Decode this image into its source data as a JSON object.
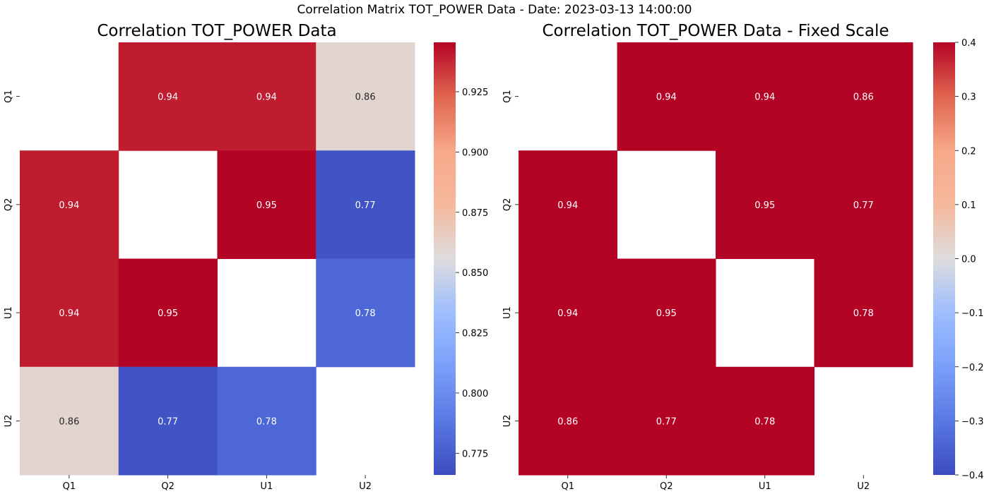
{
  "figure": {
    "suptitle": "Correlation Matrix TOT_POWER Data - Date: 2023-03-13 14:00:00"
  },
  "chart_data": [
    {
      "type": "heatmap",
      "title": "Correlation TOT_POWER Data",
      "xlabel": "",
      "ylabel": "",
      "x_categories": [
        "Q1",
        "Q2",
        "U1",
        "U2"
      ],
      "y_categories": [
        "Q1",
        "Q2",
        "U1",
        "U2"
      ],
      "values": [
        [
          null,
          0.94,
          0.94,
          0.86
        ],
        [
          0.94,
          null,
          0.95,
          0.77
        ],
        [
          0.94,
          0.95,
          null,
          0.78
        ],
        [
          0.86,
          0.77,
          0.78,
          null
        ]
      ],
      "cell_labels": [
        [
          "",
          "0.94",
          "0.94",
          "0.86"
        ],
        [
          "0.94",
          "",
          "0.95",
          "0.77"
        ],
        [
          "0.94",
          "0.95",
          "",
          "0.78"
        ],
        [
          "0.86",
          "0.77",
          "0.78",
          ""
        ]
      ],
      "colormap": "coolwarm",
      "color_range": [
        0.766,
        0.9455
      ],
      "colorbar_ticks": [
        "0.775",
        "0.800",
        "0.825",
        "0.850",
        "0.875",
        "0.900",
        "0.925"
      ],
      "colorbar_tick_values": [
        0.775,
        0.8,
        0.825,
        0.85,
        0.875,
        0.9,
        0.925
      ],
      "grid": false
    },
    {
      "type": "heatmap",
      "title": "Correlation TOT_POWER Data - Fixed Scale",
      "xlabel": "",
      "ylabel": "",
      "x_categories": [
        "Q1",
        "Q2",
        "U1",
        "U2"
      ],
      "y_categories": [
        "Q1",
        "Q2",
        "U1",
        "U2"
      ],
      "values": [
        [
          null,
          0.94,
          0.94,
          0.86
        ],
        [
          0.94,
          null,
          0.95,
          0.77
        ],
        [
          0.94,
          0.95,
          null,
          0.78
        ],
        [
          0.86,
          0.77,
          0.78,
          null
        ]
      ],
      "cell_labels": [
        [
          "",
          "0.94",
          "0.94",
          "0.86"
        ],
        [
          "0.94",
          "",
          "0.95",
          "0.77"
        ],
        [
          "0.94",
          "0.95",
          "",
          "0.78"
        ],
        [
          "0.86",
          "0.77",
          "0.78",
          ""
        ]
      ],
      "colormap": "coolwarm",
      "color_range": [
        -0.4,
        0.4
      ],
      "colorbar_ticks": [
        "0.4",
        "0.3",
        "0.2",
        "0.1",
        "0.0",
        "−0.1",
        "−0.2",
        "−0.3",
        "−0.4"
      ],
      "colorbar_tick_values": [
        0.4,
        0.3,
        0.2,
        0.1,
        0.0,
        -0.1,
        -0.2,
        -0.3,
        -0.4
      ],
      "grid": false
    }
  ]
}
